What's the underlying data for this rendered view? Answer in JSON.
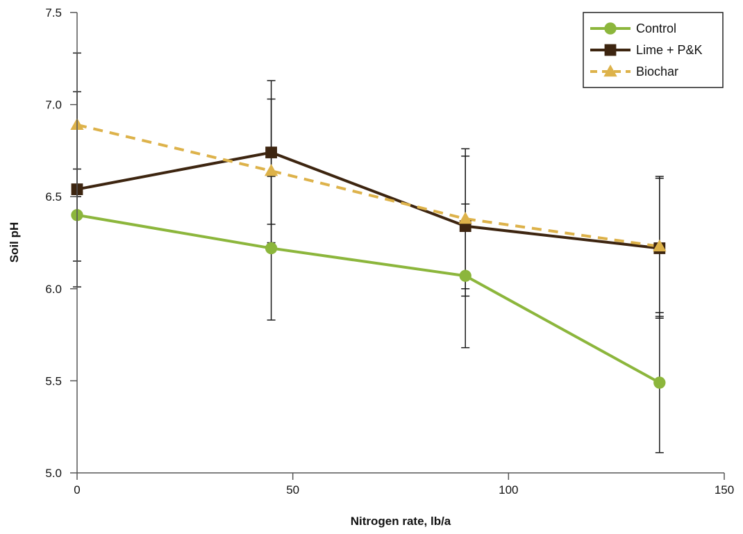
{
  "chart_data": {
    "type": "line",
    "title": "",
    "xlabel": "Nitrogen rate, lb/a",
    "ylabel": "Soil pH",
    "xlim": [
      0,
      150
    ],
    "ylim": [
      5.0,
      7.5
    ],
    "x_ticks": [
      0,
      50,
      100,
      150
    ],
    "y_ticks": [
      5.0,
      5.5,
      6.0,
      6.5,
      7.0,
      7.5
    ],
    "x_tick_labels": [
      "0",
      "50",
      "100",
      "150"
    ],
    "y_tick_labels": [
      "5.0",
      "5.5",
      "6.0",
      "6.5",
      "7.0",
      "7.5"
    ],
    "grid": false,
    "legend_position": "top-right",
    "series": [
      {
        "name": "Control",
        "color": "#8cb63c",
        "marker": "circle",
        "line_style": "solid",
        "x": [
          0,
          45,
          90,
          135
        ],
        "y": [
          6.4,
          6.22,
          6.07,
          5.49
        ],
        "error": [
          0.25,
          0.39,
          0.39,
          0.38
        ]
      },
      {
        "name": "Lime + P&K",
        "color": "#3d2510",
        "marker": "square",
        "line_style": "solid",
        "x": [
          0,
          45,
          90,
          135
        ],
        "y": [
          6.54,
          6.74,
          6.34,
          6.22
        ],
        "error": [
          0.53,
          0.39,
          0.38,
          0.38
        ]
      },
      {
        "name": "Biochar",
        "color": "#ddb24a",
        "marker": "triangle",
        "line_style": "dashed",
        "x": [
          0,
          45,
          90,
          135
        ],
        "y": [
          6.89,
          6.64,
          6.38,
          6.23
        ],
        "error": [
          0.39,
          0.39,
          0.38,
          0.38
        ]
      }
    ]
  }
}
